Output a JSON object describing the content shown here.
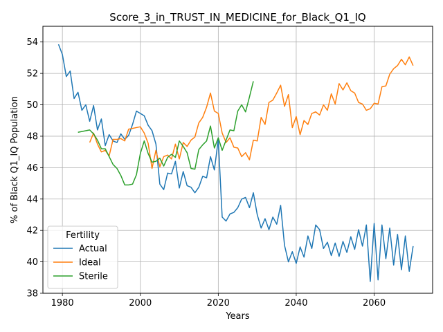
{
  "chart_data": {
    "type": "line",
    "title": "Score_3_in_TRUST_IN_MEDICINE_for_Black_Q1_IQ",
    "xlabel": "Years",
    "ylabel": "% of Black Q1_IQ Population",
    "xlim": [
      1975,
      2075
    ],
    "ylim": [
      38,
      55
    ],
    "xticks": [
      1980,
      2000,
      2020,
      2040,
      2060
    ],
    "yticks": [
      38,
      40,
      42,
      44,
      46,
      48,
      50,
      52,
      54
    ],
    "grid": true,
    "legend": {
      "title": "Fertility",
      "placement": "lower-left"
    },
    "series": [
      {
        "name": "Actual",
        "color": "#1f77b4",
        "x": [
          1979,
          1980,
          1981,
          1982,
          1983,
          1984,
          1985,
          1986,
          1987,
          1988,
          1989,
          1990,
          1991,
          1992,
          1993,
          1994,
          1995,
          1996,
          1997,
          1998,
          1999,
          2000,
          2001,
          2002,
          2003,
          2004,
          2005,
          2006,
          2007,
          2008,
          2009,
          2010,
          2011,
          2012,
          2013,
          2014,
          2015,
          2016,
          2017,
          2018,
          2019,
          2020,
          2021,
          2022,
          2023,
          2024,
          2025,
          2026,
          2027,
          2028,
          2029,
          2030,
          2031,
          2032,
          2033,
          2034,
          2035,
          2036,
          2037,
          2038,
          2039,
          2040,
          2041,
          2042,
          2043,
          2044,
          2045,
          2046,
          2047,
          2048,
          2049,
          2050,
          2051,
          2052,
          2053,
          2054,
          2055,
          2056,
          2057,
          2058,
          2059,
          2060,
          2061,
          2062,
          2063,
          2064,
          2065,
          2066,
          2067,
          2068,
          2069,
          2070
        ],
        "values": [
          53.85,
          53.2,
          51.8,
          52.15,
          50.4,
          50.8,
          49.65,
          50.0,
          48.95,
          49.95,
          48.4,
          49.1,
          47.4,
          48.1,
          47.7,
          47.6,
          48.15,
          47.8,
          48.05,
          48.75,
          49.6,
          49.45,
          49.3,
          48.7,
          48.35,
          47.5,
          44.95,
          44.6,
          45.65,
          45.6,
          46.4,
          44.7,
          45.75,
          44.85,
          44.75,
          44.4,
          44.75,
          45.45,
          45.35,
          46.7,
          45.85,
          47.8,
          42.85,
          42.6,
          43.05,
          43.15,
          43.45,
          44.0,
          44.1,
          43.45,
          44.4,
          43.0,
          42.15,
          42.75,
          42.05,
          42.85,
          42.4,
          43.6,
          41.05,
          40.0,
          40.65,
          39.9,
          40.95,
          40.3,
          41.65,
          40.85,
          42.35,
          42.05,
          40.85,
          41.25,
          40.4,
          41.2,
          40.35,
          41.3,
          40.6,
          41.6,
          40.8,
          42.05,
          41.0,
          42.35,
          38.75,
          42.45,
          38.85,
          42.35,
          40.2,
          42.15,
          39.8,
          41.75,
          39.5,
          41.65,
          39.4,
          41.0
        ]
      },
      {
        "name": "Ideal",
        "color": "#ff7f0e",
        "x": [
          1987,
          1988,
          1989,
          1990,
          1991,
          1992,
          1993,
          1994,
          1995,
          1996,
          1997,
          1998,
          1999,
          2000,
          2001,
          2002,
          2003,
          2004,
          2005,
          2006,
          2007,
          2008,
          2009,
          2010,
          2011,
          2012,
          2013,
          2014,
          2015,
          2016,
          2017,
          2018,
          2019,
          2020,
          2021,
          2022,
          2023,
          2024,
          2025,
          2026,
          2027,
          2028,
          2029,
          2030,
          2031,
          2032,
          2033,
          2034,
          2035,
          2036,
          2037,
          2038,
          2039,
          2040,
          2041,
          2042,
          2043,
          2044,
          2045,
          2046,
          2047,
          2048,
          2049,
          2050,
          2051,
          2052,
          2053,
          2054,
          2055,
          2056,
          2057,
          2058,
          2059,
          2060,
          2061,
          2062,
          2063,
          2064,
          2065,
          2066,
          2067,
          2068,
          2069,
          2070
        ],
        "values": [
          47.6,
          48.2,
          47.5,
          47.0,
          47.1,
          46.75,
          47.8,
          47.8,
          47.85,
          47.7,
          48.45,
          48.5,
          48.55,
          48.6,
          48.2,
          47.55,
          45.95,
          47.1,
          46.05,
          46.7,
          46.8,
          46.55,
          47.5,
          46.55,
          47.6,
          47.35,
          47.75,
          47.95,
          48.85,
          49.2,
          49.85,
          50.75,
          49.6,
          49.45,
          48.2,
          47.6,
          47.9,
          47.3,
          47.25,
          46.7,
          46.95,
          46.5,
          47.75,
          47.7,
          49.2,
          48.75,
          50.15,
          50.3,
          50.75,
          51.25,
          49.9,
          50.65,
          48.55,
          49.25,
          48.1,
          49.0,
          48.75,
          49.45,
          49.55,
          49.35,
          50.0,
          49.65,
          50.7,
          50.05,
          51.35,
          50.95,
          51.4,
          50.9,
          50.75,
          50.15,
          50.05,
          49.65,
          49.75,
          50.1,
          50.05,
          51.15,
          51.2,
          51.95,
          52.3,
          52.5,
          52.9,
          52.55,
          53.05,
          52.5
        ]
      },
      {
        "name": "Sterile",
        "color": "#2ca02c",
        "x": [
          1984,
          1985,
          1986,
          1987,
          1988,
          1989,
          1990,
          1991,
          1992,
          1993,
          1994,
          1995,
          1996,
          1997,
          1998,
          1999,
          2000,
          2001,
          2002,
          2003,
          2004,
          2005,
          2006,
          2007,
          2008,
          2009,
          2010,
          2011,
          2012,
          2013,
          2014,
          2015,
          2016,
          2017,
          2018,
          2019,
          2020,
          2021,
          2022,
          2023,
          2024,
          2025,
          2026,
          2027,
          2028,
          2029
        ],
        "values": [
          48.25,
          48.3,
          48.35,
          48.4,
          48.15,
          47.75,
          47.2,
          47.2,
          46.7,
          46.2,
          45.95,
          45.5,
          44.9,
          44.9,
          44.95,
          45.55,
          46.9,
          47.7,
          46.9,
          46.35,
          46.4,
          46.6,
          46.1,
          46.65,
          46.85,
          46.65,
          47.7,
          47.35,
          46.95,
          45.95,
          45.9,
          47.15,
          47.45,
          47.7,
          48.65,
          47.25,
          47.9,
          47.1,
          47.75,
          48.4,
          48.35,
          49.6,
          50.0,
          49.55,
          50.5,
          51.5
        ]
      }
    ]
  }
}
